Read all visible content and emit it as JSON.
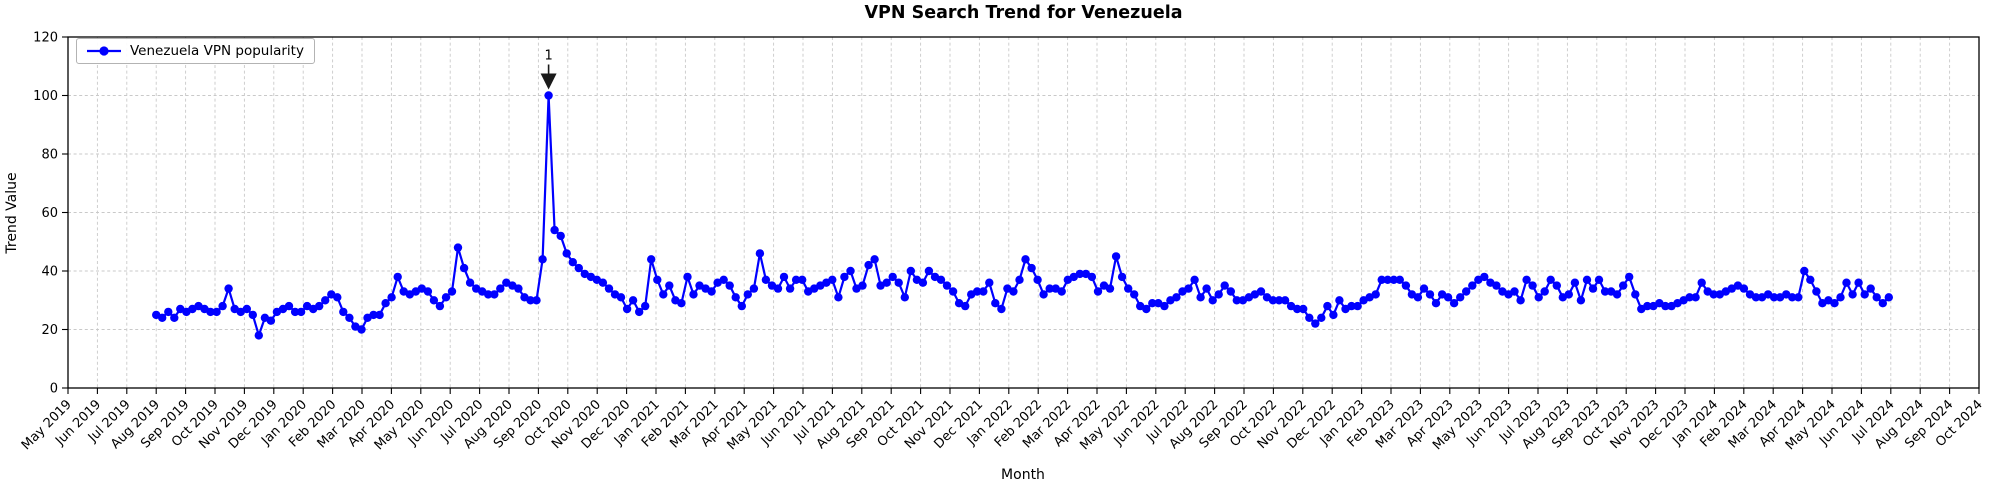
{
  "chart_data": {
    "type": "line",
    "title": "VPN Search Trend for Venezuela",
    "xlabel": "Month",
    "ylabel": "Trend Value",
    "grid": true,
    "legend": {
      "position": "upper-left",
      "entries": [
        {
          "label": "Venezuela VPN popularity",
          "color": "#0000ff",
          "marker": "circle"
        }
      ]
    },
    "ylim": [
      0,
      120
    ],
    "yticks": [
      0,
      20,
      40,
      60,
      80,
      100,
      120
    ],
    "x_tick_labels": [
      "May 2019",
      "Jun 2019",
      "Jul 2019",
      "Aug 2019",
      "Sep 2019",
      "Oct 2019",
      "Nov 2019",
      "Dec 2019",
      "Jan 2020",
      "Feb 2020",
      "Mar 2020",
      "Apr 2020",
      "May 2020",
      "Jun 2020",
      "Jul 2020",
      "Aug 2020",
      "Sep 2020",
      "Oct 2020",
      "Nov 2020",
      "Dec 2020",
      "Jan 2021",
      "Feb 2021",
      "Mar 2021",
      "Apr 2021",
      "May 2021",
      "Jun 2021",
      "Jul 2021",
      "Aug 2021",
      "Sep 2021",
      "Oct 2021",
      "Nov 2021",
      "Dec 2021",
      "Jan 2022",
      "Feb 2022",
      "Mar 2022",
      "Apr 2022",
      "May 2022",
      "Jun 2022",
      "Jul 2022",
      "Aug 2022",
      "Sep 2022",
      "Oct 2022",
      "Nov 2022",
      "Dec 2022",
      "Jan 2023",
      "Feb 2023",
      "Mar 2023",
      "Apr 2023",
      "May 2023",
      "Jun 2023",
      "Jul 2023",
      "Aug 2023",
      "Sep 2023",
      "Oct 2023",
      "Nov 2023",
      "Dec 2023",
      "Jan 2024",
      "Feb 2024",
      "Mar 2024",
      "Apr 2024",
      "May 2024",
      "Jun 2024",
      "Jul 2024",
      "Aug 2024",
      "Sep 2024",
      "Oct 2024"
    ],
    "series": [
      {
        "name": "Venezuela VPN popularity",
        "color": "#0000ff",
        "marker": "o",
        "start_month_index": 3,
        "points_per_month": 4.87,
        "values": [
          25,
          24,
          26,
          24,
          27,
          26,
          27,
          28,
          27,
          26,
          26,
          28,
          34,
          27,
          26,
          27,
          25,
          18,
          24,
          23,
          26,
          27,
          28,
          26,
          26,
          28,
          27,
          28,
          30,
          32,
          31,
          26,
          24,
          21,
          20,
          24,
          25,
          25,
          29,
          31,
          38,
          33,
          32,
          33,
          34,
          33,
          30,
          28,
          31,
          33,
          48,
          41,
          36,
          34,
          33,
          32,
          32,
          34,
          36,
          35,
          34,
          31,
          30,
          30,
          44,
          100,
          54,
          52,
          46,
          43,
          41,
          39,
          38,
          37,
          36,
          34,
          32,
          31,
          27,
          30,
          26,
          28,
          44,
          37,
          32,
          35,
          30,
          29,
          38,
          32,
          35,
          34,
          33,
          36,
          37,
          35,
          31,
          28,
          32,
          34,
          46,
          37,
          35,
          34,
          38,
          34,
          37,
          37,
          33,
          34,
          35,
          36,
          37,
          31,
          38,
          40,
          34,
          35,
          42,
          44,
          35,
          36,
          38,
          36,
          31,
          40,
          37,
          36,
          40,
          38,
          37,
          35,
          33,
          29,
          28,
          32,
          33,
          33,
          36,
          29,
          27,
          34,
          33,
          37,
          44,
          41,
          37,
          32,
          34,
          34,
          33,
          37,
          38,
          39,
          39,
          38,
          33,
          35,
          34,
          45,
          38,
          34,
          32,
          28,
          27,
          29,
          29,
          28,
          30,
          31,
          33,
          34,
          37,
          31,
          34,
          30,
          32,
          35,
          33,
          30,
          30,
          31,
          32,
          33,
          31,
          30,
          30,
          30,
          28,
          27,
          27,
          24,
          22,
          24,
          28,
          25,
          30,
          27,
          28,
          28,
          30,
          31,
          32,
          37,
          37,
          37,
          37,
          35,
          32,
          31,
          34,
          32,
          29,
          32,
          31,
          29,
          31,
          33,
          35,
          37,
          38,
          36,
          35,
          33,
          32,
          33,
          30,
          37,
          35,
          31,
          33,
          37,
          35,
          31,
          32,
          36,
          30,
          37,
          34,
          37,
          33,
          33,
          32,
          35,
          38,
          32,
          27,
          28,
          28,
          29,
          28,
          28,
          29,
          30,
          31,
          31,
          36,
          33,
          32,
          32,
          33,
          34,
          35,
          34,
          32,
          31,
          31,
          32,
          31,
          31,
          32,
          31,
          31,
          40,
          37,
          33,
          29,
          30,
          29,
          31,
          36,
          32,
          36,
          32,
          34,
          31,
          29,
          31
        ]
      }
    ],
    "annotation": {
      "text": "1",
      "point_index": 65,
      "value": 100,
      "color": "#1a1a1a"
    },
    "colors": {
      "line": "#0000ff",
      "grid": "#c9c9c9",
      "spine": "#000000",
      "background": "#ffffff"
    }
  }
}
